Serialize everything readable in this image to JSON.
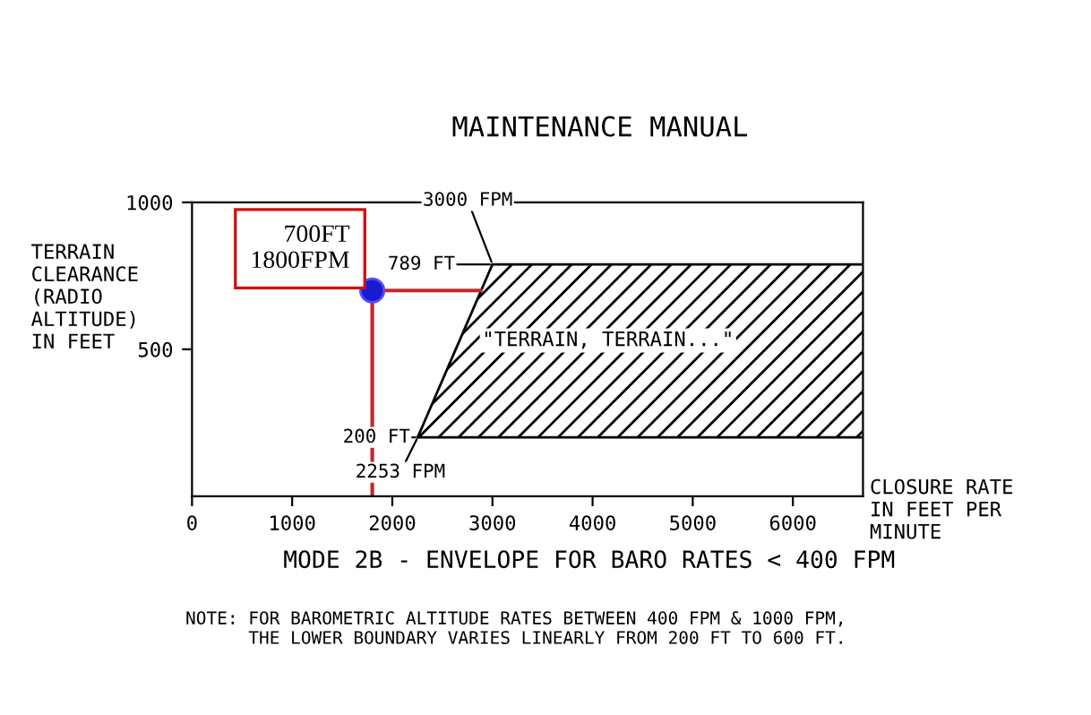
{
  "chart_data": {
    "type": "area",
    "title": "MODE 2B - ENVELOPE FOR BARO RATES < 400 FPM",
    "xlabel": "CLOSURE RATE\nIN FEET PER\nMINUTE",
    "ylabel": "TERRAIN\nCLEARANCE\n(RADIO\nALTITUDE)\nIN FEET",
    "xlim": [
      0,
      6700
    ],
    "xticks": [
      0,
      1000,
      2000,
      3000,
      4000,
      5000,
      6000
    ],
    "ylim": [
      0,
      1000
    ],
    "yticks": [
      500,
      1000
    ],
    "grid": false,
    "series": [
      {
        "color": "#000000",
        "x": [
          2253,
          3000,
          6700
        ],
        "values": [
          200,
          789,
          789
        ]
      },
      {
        "type": "line",
        "color": "#000000",
        "x": [
          2253,
          6700
        ],
        "values": [
          200,
          200
        ]
      },
      {
        "type": "line",
        "color": "#c0282d",
        "x": [
          1800,
          1800,
          2880
        ],
        "values": [
          0,
          700,
          700
        ]
      },
      {
        "type": "scatter",
        "color": "#1a1ad0",
        "x": [
          1800
        ],
        "values": [
          700
        ]
      }
    ],
    "annotations": [
      {
        "text": "700FT\n1800FPM",
        "x": 1800,
        "y": 700
      },
      {
        "text": "3000 FPM",
        "x": 3000,
        "y": 789
      },
      {
        "text": "789 FT",
        "x": 3000,
        "y": 789
      },
      {
        "text": "200 FT",
        "x": 2253,
        "y": 200
      },
      {
        "text": "2253 FPM",
        "x": 2253,
        "y": 200
      },
      "\"TERRAIN, TERRAIN...\"",
      "MAINTENANCE MANUAL",
      "NOTE: FOR BAROMETRIC ALTITUDE RATES BETWEEN 400 FPM & 1000 FPM,\n      THE LOWER BOUNDARY VARIES LINEARLY FROM 200 FT TO 600 FT."
    ]
  }
}
